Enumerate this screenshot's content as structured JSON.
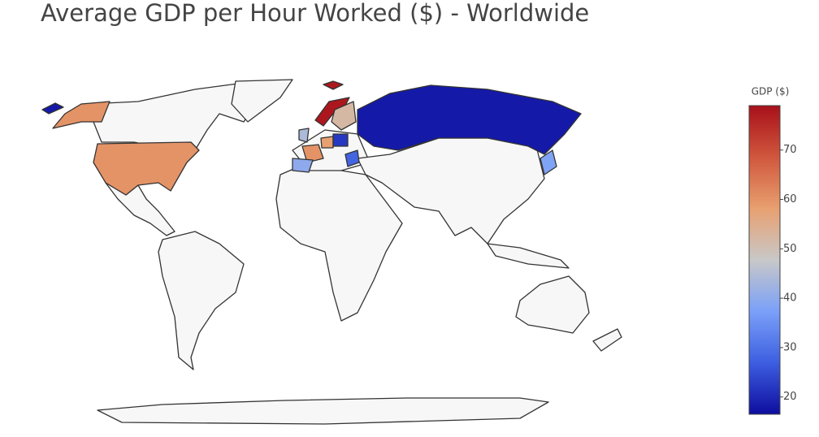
{
  "chart_data": {
    "type": "choropleth",
    "title": "Average GDP per Hour Worked ($) - Worldwide",
    "colorbar_title": "GDP ($)",
    "values": [
      60,
      18,
      78,
      52,
      44,
      60,
      40,
      58,
      22,
      28,
      38
    ],
    "zlim": [
      16.5,
      79
    ],
    "zticks": [
      20,
      30,
      40,
      50,
      60,
      70
    ],
    "colorscale": [
      "#0d0d9e",
      "#3d5ee0",
      "#7aa0f8",
      "#c8c8c8",
      "#e8a070",
      "#d0573d",
      "#a8101a"
    ]
  }
}
